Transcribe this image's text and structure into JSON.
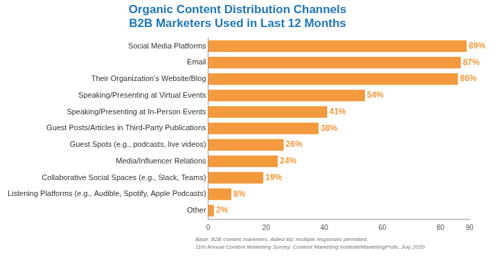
{
  "chart_data": {
    "type": "bar",
    "title": [
      "Organic Content Distribution Channels",
      "B2B Marketers Used in Last 12 Months"
    ],
    "annotations": [
      "Base: B2B content marketers. Aided list; multiple responses permitted.",
      "11th Annual Content Marketing Survey: Content Marketing Institute/MarketingProfs, July 2020"
    ],
    "categories": [
      "Social Media Platforms",
      "Email",
      "Their Organization’s Website/Blog",
      "Speaking/Presenting at Virtual Events",
      "Speaking/Presenting at In-Person Events",
      "Guest Posts/Articles in Third-Party Publications",
      "Guest Spots (e.g., podcasts, live videos)",
      "Media/Influencer Relations",
      "Collaborative Social Spaces (e.g., Slack, Teams)",
      "Listening Platforms (e.g., Audible, Spotify, Apple Podcasts)",
      "Other"
    ],
    "values": [
      89,
      87,
      86,
      54,
      41,
      38,
      26,
      24,
      19,
      8,
      2
    ],
    "value_labels": [
      "89%",
      "87%",
      "86%",
      "54%",
      "41%",
      "38%",
      "26%",
      "24%",
      "19%",
      "8%",
      "2%"
    ],
    "color": "#f39a3e",
    "orientation": "horizontal",
    "data_labels": true,
    "xlim": [
      0,
      90
    ],
    "xticks": [
      0,
      20,
      40,
      60,
      80,
      90
    ],
    "grid": false
  }
}
